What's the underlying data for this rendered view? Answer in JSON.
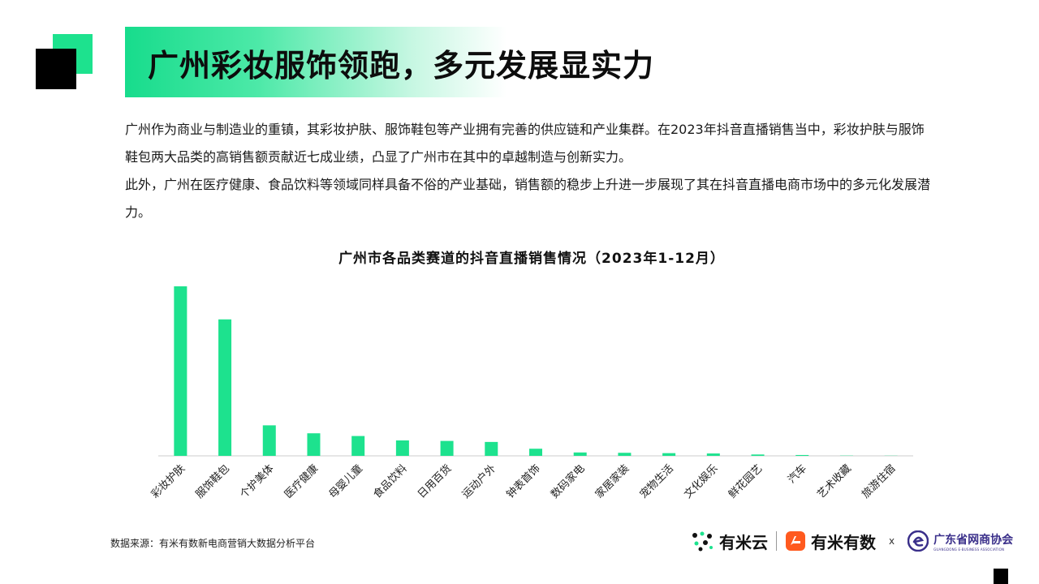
{
  "page": {
    "title": "广州彩妆服饰领跑，多元发展显实力",
    "paragraphs": [
      "广州作为商业与制造业的重镇，其彩妆护肤、服饰鞋包等产业拥有完善的供应链和产业集群。在2023年抖音直播销售当中，彩妆护肤与服饰鞋包两大品类的高销售额贡献近七成业绩，凸显了广州市在其中的卓越制造与创新实力。",
      "此外，广州在医疗健康、食品饮料等领域同样具备不俗的产业基础，销售额的稳步上升进一步展现了其在抖音直播电商市场中的多元化发展潜力。"
    ],
    "source": "数据来源：有米有数新电商营销大数据分析平台"
  },
  "logos": {
    "yunmi": "有米云",
    "youmi": "有米有数",
    "separator": "x",
    "assoc_cn": "广东省网商协会",
    "assoc_en": "GUANGDONG E-BUSINESS ASSOCIATION"
  },
  "colors": {
    "accent": "#1de28e",
    "bar": "#1de28e",
    "axis": "#cccccc",
    "assoc": "#3a2f8a",
    "youmi_logo": "#ff5a1f"
  },
  "chart_data": {
    "type": "bar",
    "title": "广州市各品类赛道的抖音直播销售情况（2023年1-12月）",
    "categories": [
      "彩妆护肤",
      "服饰鞋包",
      "个护美体",
      "医疗健康",
      "母婴儿童",
      "食品饮料",
      "日用百货",
      "运动户外",
      "钟表首饰",
      "数码家电",
      "家居家装",
      "宠物生活",
      "文化娱乐",
      "鲜花园艺",
      "汽车",
      "艺术收藏",
      "旅游住宿"
    ],
    "values": [
      100,
      80.5,
      18,
      13.3,
      11.7,
      9.1,
      8.8,
      8.2,
      4.2,
      2.0,
      1.8,
      1.6,
      1.4,
      0.8,
      0.5,
      0.15,
      0.1
    ],
    "ylim": [
      0,
      100
    ],
    "grid": false,
    "legend": "none"
  }
}
